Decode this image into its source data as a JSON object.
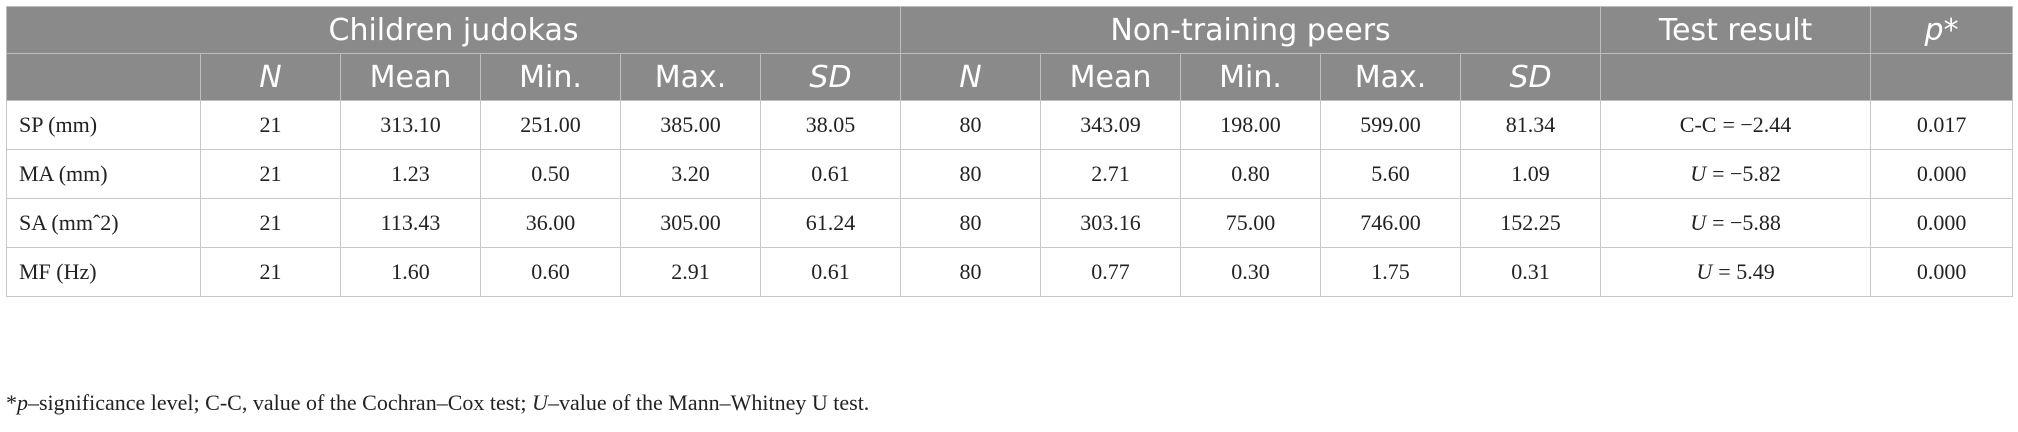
{
  "table": {
    "group_headers": [
      "Children judokas",
      "Non-training peers",
      "Test result",
      {
        "italic": "p",
        "rest": "*"
      }
    ],
    "sub_headers": [
      {
        "italic": "N"
      },
      {
        "text": "Mean"
      },
      {
        "text": "Min."
      },
      {
        "text": "Max."
      },
      {
        "italic": "SD"
      },
      {
        "italic": "N"
      },
      {
        "text": "Mean"
      },
      {
        "text": "Min."
      },
      {
        "text": "Max."
      },
      {
        "italic": "SD"
      }
    ],
    "rows": [
      {
        "label": "SP (mm)",
        "values": [
          "21",
          "313.10",
          "251.00",
          "385.00",
          "38.05",
          "80",
          "343.09",
          "198.00",
          "599.00",
          "81.34"
        ],
        "test": {
          "stat": "C-C",
          "rest": "= −2.44"
        },
        "p": "0.017"
      },
      {
        "label": "MA (mm)",
        "values": [
          "21",
          "1.23",
          "0.50",
          "3.20",
          "0.61",
          "80",
          "2.71",
          "0.80",
          "5.60",
          "1.09"
        ],
        "test": {
          "stat_italic": "U",
          "rest": "= −5.82"
        },
        "p": "0.000"
      },
      {
        "label": "SA (mmˆ2)",
        "values": [
          "21",
          "113.43",
          "36.00",
          "305.00",
          "61.24",
          "80",
          "303.16",
          "75.00",
          "746.00",
          "152.25"
        ],
        "test": {
          "stat_italic": "U",
          "rest": "= −5.88"
        },
        "p": "0.000"
      },
      {
        "label": "MF (Hz)",
        "values": [
          "21",
          "1.60",
          "0.60",
          "2.91",
          "0.61",
          "80",
          "0.77",
          "0.30",
          "1.75",
          "0.31"
        ],
        "test": {
          "stat_italic": "U",
          "rest": "= 5.49"
        },
        "p": "0.000"
      }
    ]
  },
  "footnote": [
    "*",
    "p",
    "–significance level; C-C, value of the Cochran–Cox test; ",
    "U",
    "–value of the Mann–Whitney U test."
  ]
}
